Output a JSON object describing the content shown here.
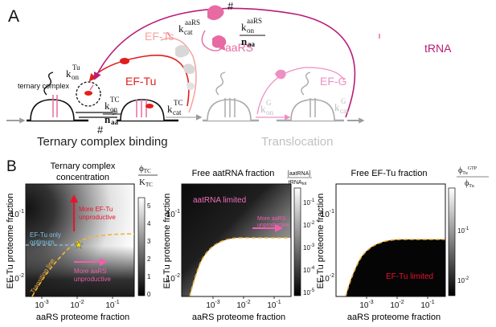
{
  "panel_a": {
    "letter": "A",
    "labels": {
      "ef_ts": "EF-Ts",
      "ef_tu": "EF-Tu",
      "aars": "aaRS",
      "trna": "tRNA",
      "ef_g": "EF-G",
      "ternary_complex": "ternary complex",
      "hash_top": "#",
      "hash_bottom": "#",
      "section_binding": "Ternary complex binding",
      "section_translocation": "Translocation"
    },
    "rates": {
      "k_on_tu_main": "k",
      "k_on_tu_sub": "on",
      "k_on_tu_sup": "Tu",
      "k_cat_aars_main": "k",
      "k_cat_aars_sub": "cat",
      "k_cat_aars_sup": "aaRS",
      "k_on_aars_main": "k",
      "k_on_aars_sub": "on",
      "k_on_aars_sup": "aaRS",
      "n_aa_top": "n",
      "n_aa_top_sub": "aa",
      "k_on_tc_main": "k",
      "k_on_tc_sub": "on",
      "k_on_tc_sup": "TC",
      "n_aa_bottom": "n",
      "n_aa_bottom_sub": "aa",
      "k_cat_tc_main": "k",
      "k_cat_tc_sub": "cat",
      "k_cat_tc_sup": "TC",
      "k_on_g_main": "k",
      "k_on_g_sub": "on",
      "k_on_g_sup": "G",
      "k_cat_g_main": "k",
      "k_cat_g_sub": "cat",
      "k_cat_g_sup": "G"
    },
    "colors": {
      "ef_tu": "#e0201c",
      "ef_tu_light": "#f3a3a2",
      "trna": "#b81c78",
      "aars": "#e76aa3",
      "ef_g": "#ee8fc4",
      "grey": "#9a9a9a",
      "light_grey": "#c8c8c8",
      "dashed_yellow": "#f2b33a"
    }
  },
  "panel_b": {
    "letter": "B",
    "charts": [
      {
        "type": "heatmap",
        "title_line1": "Ternary complex",
        "title_line2": "concentration",
        "xlabel": "aaRS proteome fraction",
        "ylabel": "EF-Tu proteome fraction",
        "x_scale": "log",
        "y_scale": "log",
        "x_ticks": [
          {
            "base": "10",
            "exp": "-3"
          },
          {
            "base": "10",
            "exp": "-2"
          },
          {
            "base": "10",
            "exp": "-1"
          }
        ],
        "y_ticks": [
          {
            "base": "10",
            "exp": "-1"
          },
          {
            "base": "10",
            "exp": "-2"
          }
        ],
        "colorbar_label_num": "ϕ",
        "colorbar_label_num_sub": "TC",
        "colorbar_label_den": "K",
        "colorbar_label_den_sub": "TC",
        "colorbar_ticks": [
          "5",
          "4",
          "3",
          "2",
          "1",
          "0"
        ],
        "annotations": {
          "more_eftu_1": "More EF-Tu",
          "more_eftu_2": "unproductive",
          "eftu_only_1": "EF-Tu only",
          "eftu_only_2": "optimum",
          "more_aars_1": "More aaRS",
          "more_aars_2": "unproductive",
          "transition": "Transition line"
        }
      },
      {
        "type": "heatmap",
        "title": "Free aatRNA fraction",
        "xlabel": "aaRS proteome fraction",
        "ylabel": "EF-Tu proteome fraction",
        "x_scale": "log",
        "y_scale": "log",
        "x_ticks": [
          {
            "base": "10",
            "exp": "-3"
          },
          {
            "base": "10",
            "exp": "-2"
          },
          {
            "base": "10",
            "exp": "-1"
          }
        ],
        "y_ticks": [
          {
            "base": "10",
            "exp": "-1"
          },
          {
            "base": "10",
            "exp": "-2"
          }
        ],
        "colorbar_label_num": "[aatRNA]",
        "colorbar_label_den": "tRNA",
        "colorbar_label_den_sub": "tot",
        "colorbar_ticks": [
          {
            "base": "10",
            "exp": "-1"
          },
          {
            "base": "10",
            "exp": "-2"
          },
          {
            "base": "10",
            "exp": "-3"
          },
          {
            "base": "10",
            "exp": "-4"
          },
          {
            "base": "10",
            "exp": "-5"
          }
        ],
        "annotations": {
          "aatrna_limited": "aatRNA limited",
          "more_aars_1": "More aaRS",
          "more_aars_2": "unproductive"
        }
      },
      {
        "type": "heatmap",
        "title": "Free EF-Tu fraction",
        "xlabel": "aaRS proteome fraction",
        "ylabel": "EF-Tu proteome fraction",
        "x_scale": "log",
        "y_scale": "log",
        "x_ticks": [
          {
            "base": "10",
            "exp": "-3"
          },
          {
            "base": "10",
            "exp": "-2"
          },
          {
            "base": "10",
            "exp": "-1"
          }
        ],
        "y_ticks": [
          {
            "base": "10",
            "exp": "-1"
          },
          {
            "base": "10",
            "exp": "-2"
          }
        ],
        "colorbar_label_num": "ϕ",
        "colorbar_label_num_sub": "Tu",
        "colorbar_label_num_sup": "GTP",
        "colorbar_label_den": "ϕ",
        "colorbar_label_den_sub": "Tu",
        "colorbar_ticks": [
          {
            "base": "10",
            "exp": "-1"
          },
          {
            "base": "10",
            "exp": "-2"
          }
        ],
        "annotations": {
          "eftu_limited": "EF-Tu limited"
        }
      }
    ]
  }
}
